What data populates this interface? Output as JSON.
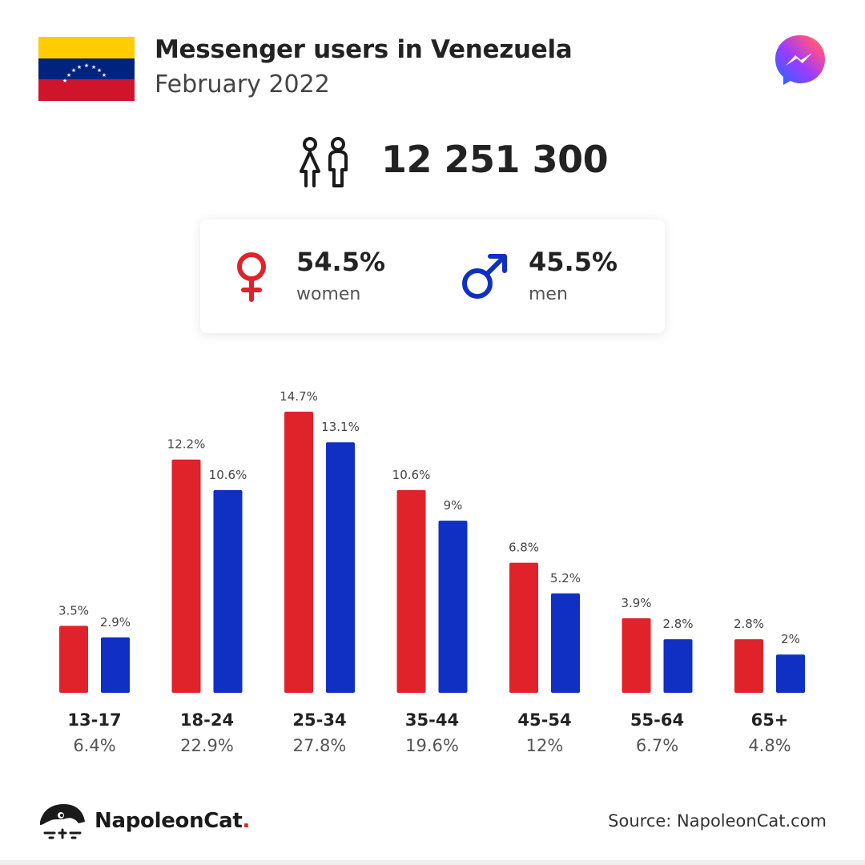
{
  "header": {
    "title": "Messenger users in Venezuela",
    "subtitle": "February 2022"
  },
  "total": "12 251 300",
  "gender": {
    "women": {
      "pct": "54.5%",
      "label": "women"
    },
    "men": {
      "pct": "45.5%",
      "label": "men"
    }
  },
  "colors": {
    "women": "#e0222a",
    "men": "#1030c4"
  },
  "footer": {
    "brand": "NapoleonCat",
    "brand_dot": ".",
    "source": "Source: NapoleonCat.com"
  },
  "chart_data": {
    "type": "bar",
    "categories": [
      "13-17",
      "18-24",
      "25-34",
      "35-44",
      "45-54",
      "55-64",
      "65+"
    ],
    "category_totals": [
      "6.4%",
      "22.9%",
      "27.8%",
      "19.6%",
      "12%",
      "6.7%",
      "4.8%"
    ],
    "series": [
      {
        "values": [
          3.5,
          12.2,
          14.7,
          10.6,
          6.8,
          3.9,
          2.8
        ],
        "labels": [
          "3.5%",
          "12.2%",
          "14.7%",
          "10.6%",
          "6.8%",
          "3.9%",
          "2.8%"
        ]
      },
      {
        "values": [
          2.9,
          10.6,
          13.1,
          9,
          5.2,
          2.8,
          2
        ],
        "labels": [
          "2.9%",
          "10.6%",
          "13.1%",
          "9%",
          "5.2%",
          "2.8%",
          "2%"
        ]
      }
    ],
    "ylim": [
      0,
      14.7
    ],
    "grid": false
  }
}
